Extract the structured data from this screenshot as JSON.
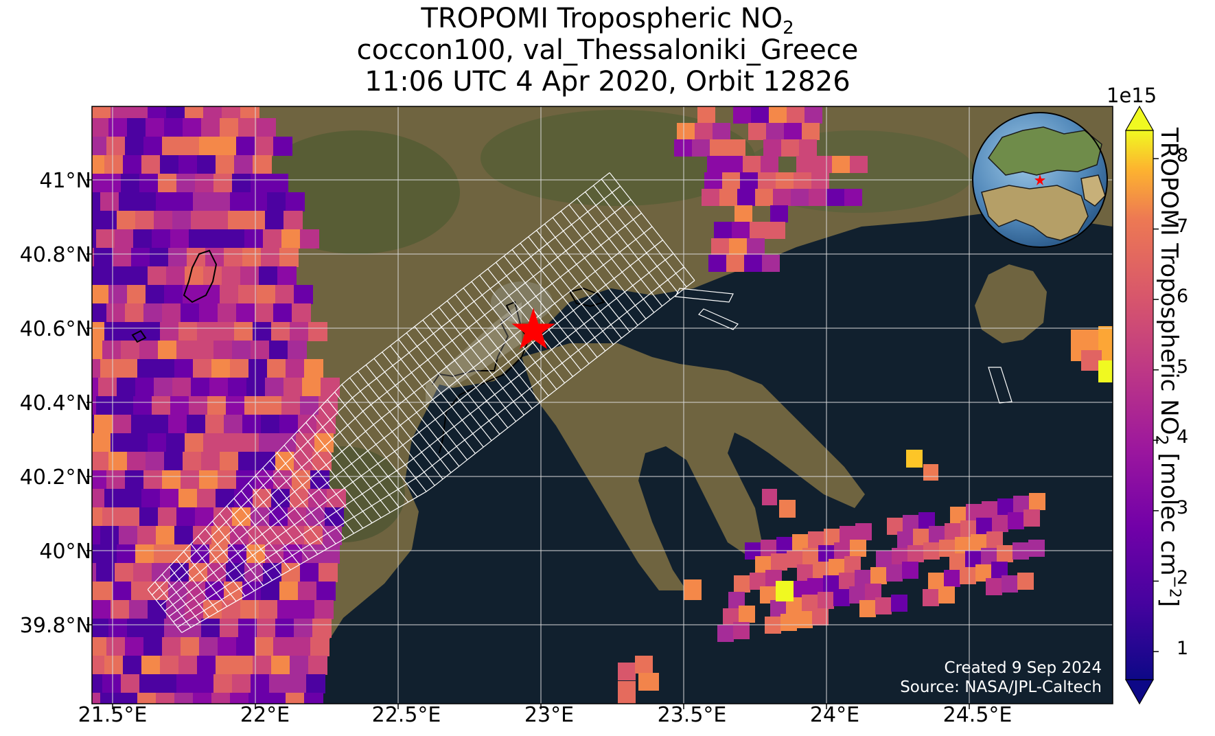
{
  "title": {
    "line1_prefix": "TROPOMI Tropospheric NO",
    "line1_sub": "2",
    "line2": "coccon100, val_Thessaloniki_Greece",
    "line3": "11:06 UTC 4 Apr 2020, Orbit 12826"
  },
  "map": {
    "lon_range": [
      21.5,
      25.0
    ],
    "lat_range": [
      39.6,
      41.2
    ],
    "gridlines": true,
    "site_marker": {
      "name": "val_Thessaloniki_Greece",
      "lon": 22.96,
      "lat": 40.63,
      "color": "#ff0000"
    },
    "x_tick_labels": [
      "21.5°E",
      "22°E",
      "22.5°E",
      "23°E",
      "23.5°E",
      "24°E",
      "24.5°E"
    ],
    "y_tick_labels": [
      "41°N",
      "40.8°N",
      "40.6°N",
      "40.4°N",
      "40.2°N",
      "40°N",
      "39.8°N"
    ],
    "inset": {
      "type": "globe",
      "marker_color": "#ff0000"
    },
    "credits": {
      "line1": "Created 9 Sep 2024",
      "line2": "Source: NASA/JPL-Caltech"
    }
  },
  "colorbar": {
    "label_prefix": "TROPOMI Tropospheric NO",
    "label_sub": "2",
    "label_suffix_a": " [molec cm",
    "label_sup": "−2",
    "label_suffix_b": "]",
    "exponent": "1e15",
    "ticks": [
      "1",
      "2",
      "3",
      "4",
      "5",
      "6",
      "7",
      "8"
    ],
    "range": [
      0.6,
      8.4
    ],
    "colormap": "plasma",
    "extend": "both"
  },
  "colors": {
    "sea": "#11202e",
    "land": "#6f6440",
    "grid": "#d9d9d9",
    "footprint": "#ffffff"
  }
}
